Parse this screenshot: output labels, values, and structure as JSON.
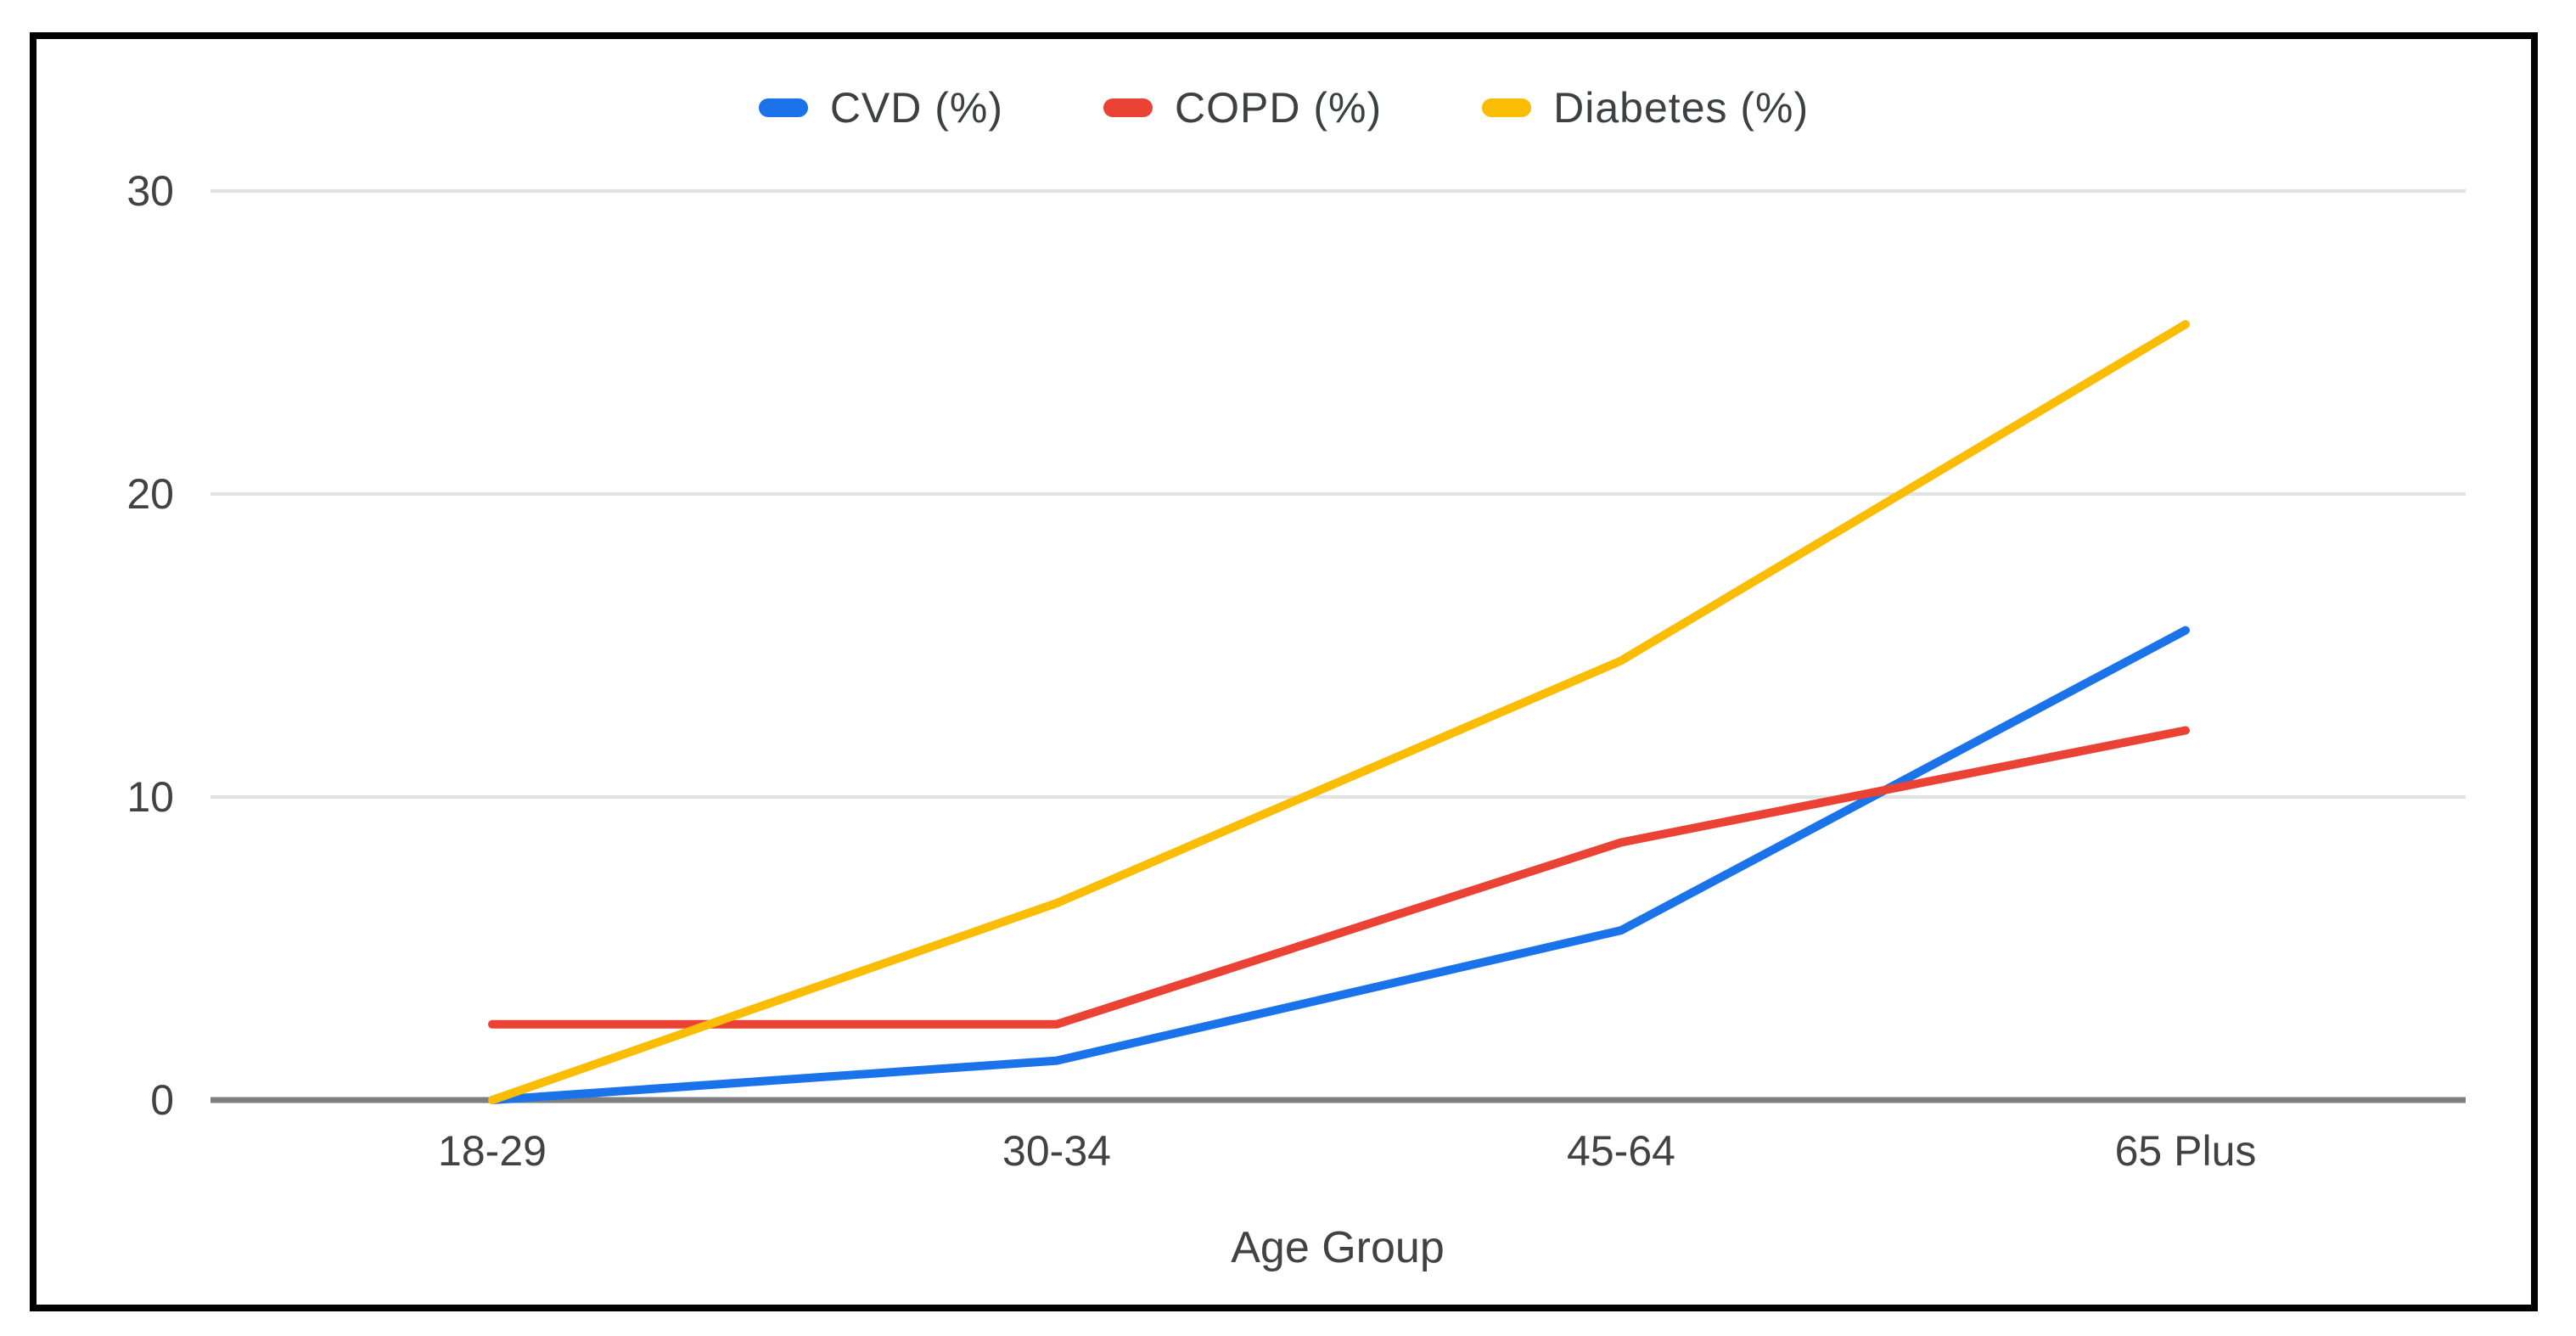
{
  "chart_data": {
    "type": "line",
    "title": "",
    "categories": [
      "18-29",
      "30-34",
      "45-64",
      "65 Plus"
    ],
    "series": [
      {
        "name": "CVD (%)",
        "color": "#1a73e8",
        "values": [
          0,
          1.3,
          5.6,
          15.5
        ]
      },
      {
        "name": "COPD (%)",
        "color": "#ea4335",
        "values": [
          2.5,
          2.5,
          8.5,
          12.2
        ]
      },
      {
        "name": "Diabetes (%)",
        "color": "#fbbc04",
        "values": [
          0,
          6.5,
          14.5,
          25.6
        ]
      }
    ],
    "xlabel": "Age Group",
    "ylabel": "",
    "ylim": [
      0,
      30
    ],
    "yticks": [
      0,
      10,
      20,
      30
    ],
    "grid": true,
    "legend_position": "top center",
    "gridline_color": "#e2e2e2",
    "baseline_color": "#7f7f7f",
    "frame_border_color": "#000000"
  }
}
